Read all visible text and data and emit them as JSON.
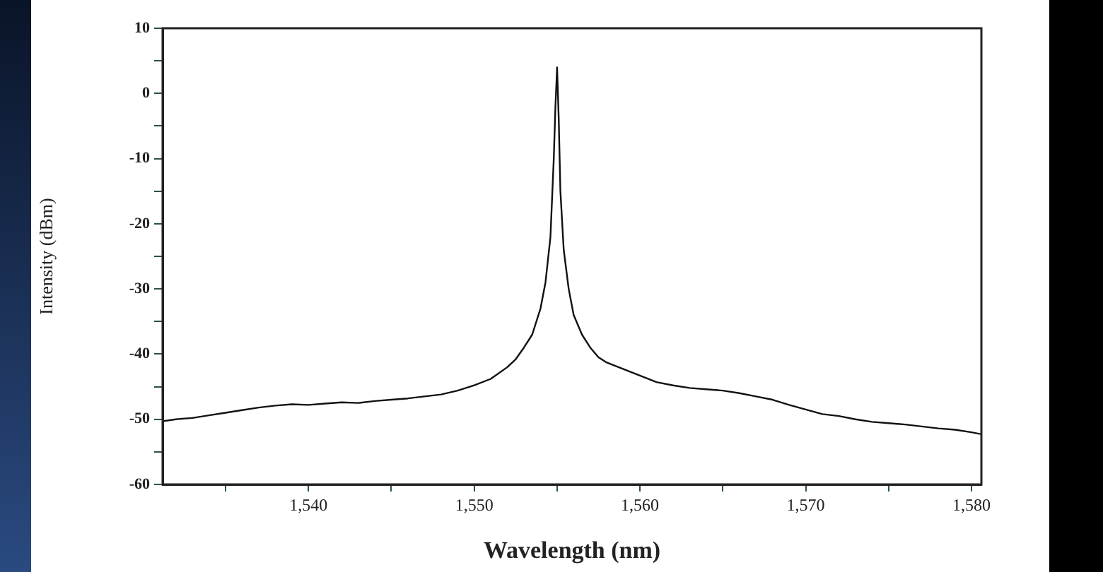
{
  "chart_data": {
    "type": "line",
    "xlabel": "Wavelength (nm)",
    "ylabel": "Intensity (dBm)",
    "xlim": [
      1531.2,
      1580.6
    ],
    "ylim": [
      -60,
      10
    ],
    "xticks": [
      {
        "value": 1535,
        "label": null
      },
      {
        "value": 1540,
        "label": "1,540"
      },
      {
        "value": 1545,
        "label": null
      },
      {
        "value": 1550,
        "label": "1,550"
      },
      {
        "value": 1555,
        "label": null
      },
      {
        "value": 1560,
        "label": "1,560"
      },
      {
        "value": 1565,
        "label": null
      },
      {
        "value": 1570,
        "label": "1,570"
      },
      {
        "value": 1575,
        "label": null
      },
      {
        "value": 1580,
        "label": "1,580"
      }
    ],
    "yticks": [
      -60,
      {
        "value": -55,
        "label": null
      },
      -50,
      {
        "value": -45,
        "label": null
      },
      -40,
      {
        "value": -35,
        "label": null
      },
      -30,
      {
        "value": -25,
        "label": null
      },
      -20,
      {
        "value": -15,
        "label": null
      },
      -10,
      {
        "value": -5,
        "label": null
      },
      0,
      {
        "value": 5,
        "label": null
      },
      10
    ],
    "grid": false,
    "legend": false,
    "marker": "none",
    "line_style": "solid",
    "series": [
      {
        "color": "#111111",
        "x": [
          1531.2,
          1532,
          1533,
          1534,
          1535,
          1536,
          1537,
          1538,
          1539,
          1540,
          1541,
          1542,
          1543,
          1544,
          1545,
          1546,
          1547,
          1548,
          1549,
          1550,
          1551,
          1552,
          1552.5,
          1553,
          1553.5,
          1554,
          1554.3,
          1554.6,
          1554.8,
          1554.9,
          1555,
          1555.1,
          1555.2,
          1555.4,
          1555.7,
          1556,
          1556.5,
          1557,
          1557.5,
          1558,
          1559,
          1560,
          1561,
          1562,
          1563,
          1564,
          1565,
          1566,
          1567,
          1568,
          1569,
          1570,
          1571,
          1572,
          1573,
          1574,
          1575,
          1576,
          1577,
          1578,
          1579,
          1580,
          1580.6
        ],
        "values": [
          -50.3,
          -50,
          -49.8,
          -49.4,
          -49,
          -48.6,
          -48.2,
          -47.9,
          -47.7,
          -47.8,
          -47.6,
          -47.4,
          -47.5,
          -47.2,
          -47,
          -46.8,
          -46.5,
          -46.2,
          -45.6,
          -44.8,
          -43.8,
          -42,
          -40.8,
          -39,
          -37,
          -33,
          -29,
          -22,
          -10,
          -2,
          4,
          -4,
          -15,
          -24,
          -30,
          -34,
          -37,
          -39,
          -40.5,
          -41.3,
          -42.3,
          -43.3,
          -44.3,
          -44.8,
          -45.2,
          -45.4,
          -45.6,
          -46,
          -46.5,
          -47,
          -47.8,
          -48.5,
          -49.2,
          -49.5,
          -50,
          -50.4,
          -50.6,
          -50.8,
          -51.1,
          -51.4,
          -51.6,
          -52,
          -52.3
        ]
      }
    ]
  }
}
